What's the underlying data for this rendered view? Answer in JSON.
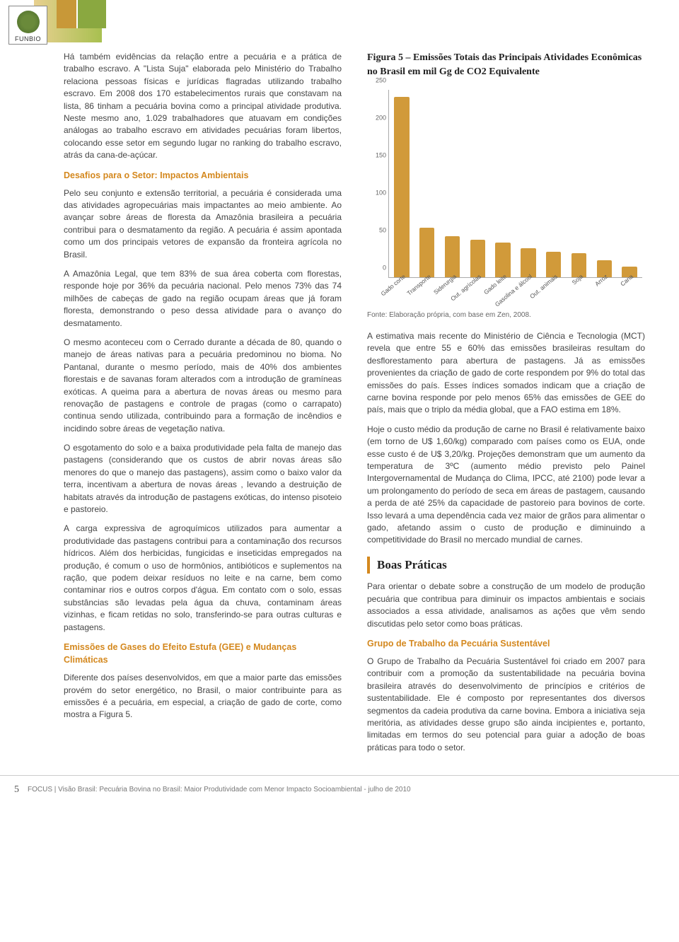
{
  "logo": {
    "text": "FUNBIO"
  },
  "left": {
    "p1": "Há também evidências da relação entre a pecuária e a prática de trabalho escravo. A \"Lista Suja\" elaborada pelo Ministério do Trabalho relaciona pessoas físicas e jurídicas flagradas utilizando trabalho escravo. Em 2008 dos 170 estabelecimentos rurais que constavam na lista, 86 tinham a pecuária bovina como a principal atividade produtiva. Neste mesmo ano, 1.029 trabalhadores que atuavam em condições análogas ao trabalho escravo em atividades pecuárias foram libertos, colocando esse setor em segundo lugar no ranking do trabalho escravo, atrás da cana-de-açúcar.",
    "h1": "Desafios para o Setor: Impactos Ambientais",
    "p2": "Pelo seu conjunto e extensão territorial, a pecuária é considerada uma das atividades agropecuárias mais impactantes ao meio ambiente. Ao avançar sobre áreas de floresta da Amazônia brasileira a pecuária contribui para o desmatamento da região. A pecuária é assim apontada como um dos principais vetores de expansão da fronteira agrícola no Brasil.",
    "p3": "A Amazônia Legal, que tem 83% de sua área coberta com florestas, responde hoje por 36% da pecuária nacional. Pelo menos 73% das 74 milhões de cabeças de gado na região ocupam áreas que já foram floresta, demonstrando o peso dessa atividade para o avanço do desmatamento.",
    "p4": "O mesmo aconteceu com o Cerrado durante a década de 80, quando o manejo de áreas nativas para a pecuária predominou no bioma. No Pantanal, durante o mesmo período, mais de 40% dos ambientes florestais e de savanas foram alterados com a introdução de gramíneas exóticas. A queima para a abertura de novas áreas ou mesmo para renovação de pastagens e controle de pragas (como o carrapato) continua sendo utilizada, contribuindo para a formação de incêndios e incidindo sobre áreas de vegetação nativa.",
    "p5": "O esgotamento do solo e a baixa produtividade pela falta de manejo das pastagens (considerando que os custos de abrir novas áreas são menores do que o manejo das pastagens), assim como o baixo valor da terra, incentivam a abertura de novas áreas , levando a destruição de habitats através da introdução de pastagens exóticas, do intenso pisoteio e pastoreio.",
    "p6": "A carga expressiva de agroquímicos utilizados para aumentar a produtividade das pastagens contribui para a contaminação dos recursos hídricos. Além dos herbicidas, fungicidas e inseticidas empregados na produção, é comum o uso de hormônios, antibióticos e suplementos na ração, que podem deixar resíduos no leite e na carne, bem como contaminar rios e outros corpos d'água. Em contato com o solo, essas substâncias são levadas pela água da chuva, contaminam áreas vizinhas, e ficam retidas no solo, transferindo-se para outras culturas e pastagens.",
    "h2": "Emissões de Gases do Efeito Estufa (GEE) e Mudanças Climáticas",
    "p7": "Diferente dos países desenvolvidos, em que a maior parte das emissões provém do setor energético, no Brasil, o maior contribuinte para as emissões é a pecuária, em especial, a criação de gado de corte, como mostra a Figura 5."
  },
  "right": {
    "fig_title": "Figura 5 – Emissões Totais das Principais Atividades Econômicas no Brasil em mil Gg de CO2 Equivalente",
    "caption": "Fonte: Elaboração própria, com base em Zen, 2008.",
    "p1": "A estimativa mais recente do Ministério de Ciência e Tecnologia (MCT) revela que entre 55 e 60% das emissões brasileiras resultam do desflorestamento para abertura de pastagens. Já as emissões provenientes da criação de gado de corte respondem por 9% do total das emissões do país. Esses índices somados indicam que a criação de carne bovina responde por pelo menos 65% das emissões de GEE do país, mais que o triplo da média global, que a FAO estima em 18%.",
    "p2": "Hoje o custo médio da produção de carne no Brasil é relativamente baixo (em torno de U$ 1,60/kg) comparado com países como os EUA, onde esse custo é de U$ 3,20/kg. Projeções demonstram que um aumento da temperatura de 3ºC (aumento médio previsto pelo Painel Intergovernamental de Mudança do Clima, IPCC, até 2100) pode levar a um prolongamento do período de seca em áreas de pastagem, causando a perda de até 25% da capacidade de pastoreio para bovinos de corte. Isso levará a uma dependência cada vez maior de grãos para alimentar o gado, afetando assim o custo de produção e diminuindo a competitividade do Brasil no mercado mundial de carnes.",
    "section": "Boas Práticas",
    "p3": "Para orientar o debate sobre a construção de um modelo de produção pecuária que contribua para diminuir os impactos ambientais e sociais associados a essa atividade, analisamos as ações que vêm sendo discutidas pelo setor como boas práticas.",
    "h3": "Grupo de Trabalho da Pecuária Sustentável",
    "p4": "O Grupo de Trabalho da Pecuária Sustentável foi criado em 2007 para contribuir com a promoção da sustentabilidade na pecuária bovina brasileira através do desenvolvimento de princípios e critérios de sustentabilidade. Ele é composto por representantes dos diversos segmentos da cadeia produtiva da carne bovina. Embora a iniciativa seja meritória, as atividades desse grupo são ainda incipientes e, portanto, limitadas em termos do seu potencial para guiar a adoção de boas práticas para todo o setor."
  },
  "chart": {
    "ylim": [
      0,
      250
    ],
    "ytick_step": 50,
    "yticks": [
      "0",
      "50",
      "100",
      "150",
      "200",
      "250"
    ],
    "categories": [
      "Gado corte",
      "Transporte",
      "Siderurgia",
      "Out. agrícolas",
      "Gado leite",
      "Gasolina e álcool",
      "Out. animais",
      "Soja",
      "Arroz",
      "Cana"
    ],
    "values": [
      240,
      66,
      54,
      50,
      46,
      38,
      34,
      32,
      22,
      14
    ],
    "bar_color": "#d19a3a",
    "axis_color": "#aaaaaa",
    "label_fontsize": 9
  },
  "footer": {
    "page": "5",
    "text": "FOCUS | Visão Brasil: Pecuária Bovina no Brasil: Maior Produtividade com Menor Impacto Socioambiental - julho de 2010"
  }
}
